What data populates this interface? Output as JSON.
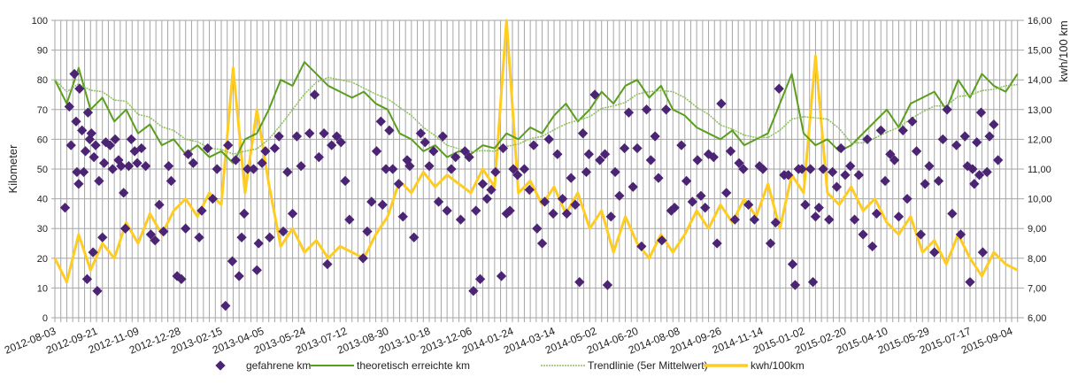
{
  "chart_data": {
    "type": "line",
    "y_left_label": "Kilometer",
    "y_right_label": "kwh/100 km",
    "y_left_range": [
      0,
      100
    ],
    "y_left_ticks": [
      "0",
      "10",
      "20",
      "30",
      "40",
      "50",
      "60",
      "70",
      "80",
      "90",
      "100"
    ],
    "y_right_range": [
      6,
      16
    ],
    "y_right_ticks": [
      "6,00",
      "7,00",
      "8,00",
      "9,00",
      "10,00",
      "11,00",
      "12,00",
      "13,00",
      "14,00",
      "15,00",
      "16,00"
    ],
    "x_start_date": "2012-08-03",
    "x_tick_interval_days": 49,
    "x_ticks": [
      "2012-08-03",
      "2012-09-21",
      "2012-11-09",
      "2012-12-28",
      "2013-02-15",
      "2013-04-05",
      "2013-05-24",
      "2013-07-12",
      "2013-08-30",
      "2013-10-18",
      "2013-12-06",
      "2014-01-24",
      "2014-03-14",
      "2014-05-02",
      "2014-06-20",
      "2014-08-08",
      "2014-09-26",
      "2014-11-14",
      "2015-01-02",
      "2015-02-20",
      "2015-04-10",
      "2015-05-29",
      "2015-07-17",
      "2015-09-04"
    ],
    "grid": true,
    "legend_position": "bottom",
    "legend": [
      "gefahrene km",
      "theoretisch erreichte km",
      "Trendlinie (5er Mittelwert)",
      "kwh/100km"
    ],
    "line_interval_days": 14,
    "series": [
      {
        "name": "gefahrene km",
        "axis": "left",
        "kind": "scatter",
        "color": "#4b2473",
        "points": [
          [
            12,
            37
          ],
          [
            17,
            71
          ],
          [
            19,
            58
          ],
          [
            23,
            82
          ],
          [
            25,
            66
          ],
          [
            26,
            49
          ],
          [
            28,
            45
          ],
          [
            29,
            77
          ],
          [
            32,
            63
          ],
          [
            34,
            49
          ],
          [
            36,
            56
          ],
          [
            38,
            13
          ],
          [
            39,
            69
          ],
          [
            41,
            60
          ],
          [
            43,
            62
          ],
          [
            45,
            22
          ],
          [
            46,
            54
          ],
          [
            48,
            58
          ],
          [
            50,
            9
          ],
          [
            52,
            46
          ],
          [
            56,
            27
          ],
          [
            58,
            52
          ],
          [
            60,
            59
          ],
          [
            65,
            58
          ],
          [
            68,
            50
          ],
          [
            71,
            60
          ],
          [
            75,
            53
          ],
          [
            78,
            51
          ],
          [
            81,
            42
          ],
          [
            83,
            30
          ],
          [
            87,
            51
          ],
          [
            90,
            60
          ],
          [
            94,
            56
          ],
          [
            97,
            52
          ],
          [
            102,
            57
          ],
          [
            107,
            51
          ],
          [
            113,
            28
          ],
          [
            118,
            26
          ],
          [
            123,
            38
          ],
          [
            128,
            29
          ],
          [
            134,
            51
          ],
          [
            137,
            46
          ],
          [
            144,
            14
          ],
          [
            149,
            13
          ],
          [
            154,
            30
          ],
          [
            157,
            55
          ],
          [
            163,
            52
          ],
          [
            170,
            27
          ],
          [
            173,
            36
          ],
          [
            180,
            57
          ],
          [
            186,
            40
          ],
          [
            191,
            50
          ],
          [
            201,
            4
          ],
          [
            204,
            58
          ],
          [
            209,
            19
          ],
          [
            213,
            53
          ],
          [
            217,
            14
          ],
          [
            220,
            27
          ],
          [
            223,
            35
          ],
          [
            227,
            50
          ],
          [
            234,
            50
          ],
          [
            238,
            16
          ],
          [
            240,
            25
          ],
          [
            244,
            52
          ],
          [
            248,
            56
          ],
          [
            253,
            27
          ],
          [
            259,
            57
          ],
          [
            264,
            61
          ],
          [
            269,
            29
          ],
          [
            274,
            49
          ],
          [
            280,
            35
          ],
          [
            285,
            61
          ],
          [
            290,
            51
          ],
          [
            300,
            62
          ],
          [
            306,
            75
          ],
          [
            311,
            54
          ],
          [
            317,
            62
          ],
          [
            321,
            18
          ],
          [
            326,
            58
          ],
          [
            332,
            61
          ],
          [
            337,
            59
          ],
          [
            342,
            46
          ],
          [
            347,
            33
          ],
          [
            363,
            20
          ],
          [
            368,
            29
          ],
          [
            373,
            39
          ],
          [
            379,
            56
          ],
          [
            384,
            66
          ],
          [
            386,
            38
          ],
          [
            390,
            50
          ],
          [
            394,
            63
          ],
          [
            398,
            50
          ],
          [
            405,
            45
          ],
          [
            410,
            34
          ],
          [
            415,
            53
          ],
          [
            418,
            51
          ],
          [
            423,
            27
          ],
          [
            431,
            62
          ],
          [
            436,
            59
          ],
          [
            441,
            51
          ],
          [
            446,
            56
          ],
          [
            452,
            39
          ],
          [
            457,
            61
          ],
          [
            462,
            36
          ],
          [
            467,
            50
          ],
          [
            472,
            54
          ],
          [
            478,
            33
          ],
          [
            483,
            56
          ],
          [
            488,
            54
          ],
          [
            493,
            9
          ],
          [
            496,
            36
          ],
          [
            501,
            13
          ],
          [
            504,
            45
          ],
          [
            509,
            40
          ],
          [
            514,
            43
          ],
          [
            519,
            49
          ],
          [
            526,
            14
          ],
          [
            528,
            57
          ],
          [
            532,
            35
          ],
          [
            536,
            36
          ],
          [
            540,
            50
          ],
          [
            545,
            48
          ],
          [
            553,
            50
          ],
          [
            559,
            43
          ],
          [
            564,
            58
          ],
          [
            568,
            30
          ],
          [
            574,
            25
          ],
          [
            577,
            39
          ],
          [
            582,
            60
          ],
          [
            587,
            35
          ],
          [
            592,
            55
          ],
          [
            598,
            40
          ],
          [
            603,
            35
          ],
          [
            608,
            47
          ],
          [
            613,
            38
          ],
          [
            618,
            12
          ],
          [
            622,
            62
          ],
          [
            626,
            49
          ],
          [
            629,
            55
          ],
          [
            636,
            75
          ],
          [
            642,
            53
          ],
          [
            648,
            55
          ],
          [
            651,
            11
          ],
          [
            655,
            34
          ],
          [
            660,
            49
          ],
          [
            665,
            41
          ],
          [
            671,
            57
          ],
          [
            676,
            69
          ],
          [
            681,
            44
          ],
          [
            686,
            57
          ],
          [
            691,
            24
          ],
          [
            697,
            70
          ],
          [
            702,
            53
          ],
          [
            707,
            61
          ],
          [
            711,
            47
          ],
          [
            715,
            26
          ],
          [
            720,
            70
          ],
          [
            726,
            36
          ],
          [
            730,
            37
          ],
          [
            738,
            58
          ],
          [
            744,
            46
          ],
          [
            751,
            39
          ],
          [
            757,
            53
          ],
          [
            761,
            41
          ],
          [
            766,
            37
          ],
          [
            770,
            55
          ],
          [
            776,
            54
          ],
          [
            780,
            25
          ],
          [
            785,
            72
          ],
          [
            791,
            42
          ],
          [
            796,
            56
          ],
          [
            801,
            33
          ],
          [
            806,
            52
          ],
          [
            811,
            50
          ],
          [
            817,
            38
          ],
          [
            824,
            33
          ],
          [
            830,
            51
          ],
          [
            834,
            50
          ],
          [
            843,
            25
          ],
          [
            849,
            32
          ],
          [
            853,
            77
          ],
          [
            859,
            48
          ],
          [
            864,
            48
          ],
          [
            869,
            18
          ],
          [
            872,
            11
          ],
          [
            876,
            50
          ],
          [
            880,
            50
          ],
          [
            884,
            38
          ],
          [
            890,
            50
          ],
          [
            893,
            12
          ],
          [
            896,
            34
          ],
          [
            900,
            37
          ],
          [
            905,
            50
          ],
          [
            912,
            33
          ],
          [
            916,
            49
          ],
          [
            921,
            44
          ],
          [
            926,
            57
          ],
          [
            931,
            48
          ],
          [
            937,
            51
          ],
          [
            942,
            33
          ],
          [
            947,
            48
          ],
          [
            952,
            28
          ],
          [
            957,
            60
          ],
          [
            963,
            24
          ],
          [
            968,
            35
          ],
          [
            973,
            63
          ],
          [
            978,
            46
          ],
          [
            984,
            55
          ],
          [
            989,
            53
          ],
          [
            994,
            34
          ],
          [
            999,
            63
          ],
          [
            1004,
            40
          ],
          [
            1010,
            66
          ],
          [
            1015,
            56
          ],
          [
            1020,
            28
          ],
          [
            1025,
            45
          ],
          [
            1030,
            51
          ],
          [
            1036,
            22
          ],
          [
            1041,
            46
          ],
          [
            1046,
            60
          ],
          [
            1051,
            70
          ],
          [
            1057,
            35
          ],
          [
            1062,
            58
          ],
          [
            1067,
            28
          ],
          [
            1072,
            61
          ],
          [
            1075,
            51
          ],
          [
            1078,
            12
          ],
          [
            1081,
            50
          ],
          [
            1083,
            45
          ],
          [
            1086,
            59
          ],
          [
            1089,
            48
          ],
          [
            1091,
            69
          ],
          [
            1093,
            22
          ],
          [
            1098,
            49
          ],
          [
            1101,
            61
          ],
          [
            1106,
            65
          ],
          [
            1111,
            53
          ]
        ]
      },
      {
        "name": "theoretisch erreichte km",
        "axis": "left",
        "kind": "line",
        "color": "#5a9e1e",
        "values": [
          80,
          72,
          84,
          70,
          74,
          66,
          70,
          62,
          65,
          58,
          60,
          55,
          58,
          54,
          56,
          52,
          60,
          62,
          70,
          80,
          78,
          86,
          82,
          78,
          76,
          74,
          76,
          72,
          70,
          62,
          60,
          56,
          58,
          54,
          56,
          55,
          58,
          57,
          62,
          60,
          64,
          62,
          68,
          72,
          66,
          70,
          76,
          72,
          78,
          80,
          74,
          78,
          70,
          68,
          64,
          62,
          60,
          63,
          58,
          60,
          62,
          72,
          82,
          62,
          58,
          60,
          56,
          58,
          62,
          66,
          70,
          64,
          72,
          74,
          76,
          70,
          80,
          74,
          82,
          78,
          76,
          82
        ]
      },
      {
        "name": "Trendlinie (5er Mittelwert)",
        "axis": "left",
        "kind": "moving-average",
        "window": 5,
        "source": "theoretisch erreichte km",
        "color": "#8cbf5a"
      },
      {
        "name": "kwh/100km",
        "axis": "right",
        "kind": "line",
        "color": "#ffcc22",
        "values": [
          8.0,
          7.2,
          8.8,
          7.6,
          8.5,
          8.0,
          9.2,
          8.5,
          9.5,
          8.8,
          9.6,
          10.0,
          9.4,
          10.2,
          9.8,
          14.4,
          10.2,
          13.0,
          10.5,
          8.4,
          9.0,
          8.2,
          8.6,
          8.0,
          8.4,
          8.2,
          8.0,
          8.8,
          9.4,
          10.6,
          10.2,
          10.9,
          10.4,
          10.8,
          10.5,
          10.2,
          11.0,
          10.4,
          16.0,
          10.2,
          10.6,
          9.8,
          10.4,
          9.5,
          10.2,
          9.0,
          9.6,
          8.2,
          9.4,
          8.5,
          8.0,
          8.8,
          8.2,
          8.8,
          9.6,
          9.0,
          9.8,
          9.2,
          10.0,
          9.4,
          10.5,
          9.0,
          10.8,
          10.2,
          14.8,
          10.2,
          9.8,
          10.4,
          9.6,
          10.0,
          9.2,
          8.8,
          9.4,
          8.2,
          8.6,
          7.8,
          8.8,
          8.0,
          7.4,
          8.2,
          7.8,
          7.6
        ]
      }
    ]
  }
}
